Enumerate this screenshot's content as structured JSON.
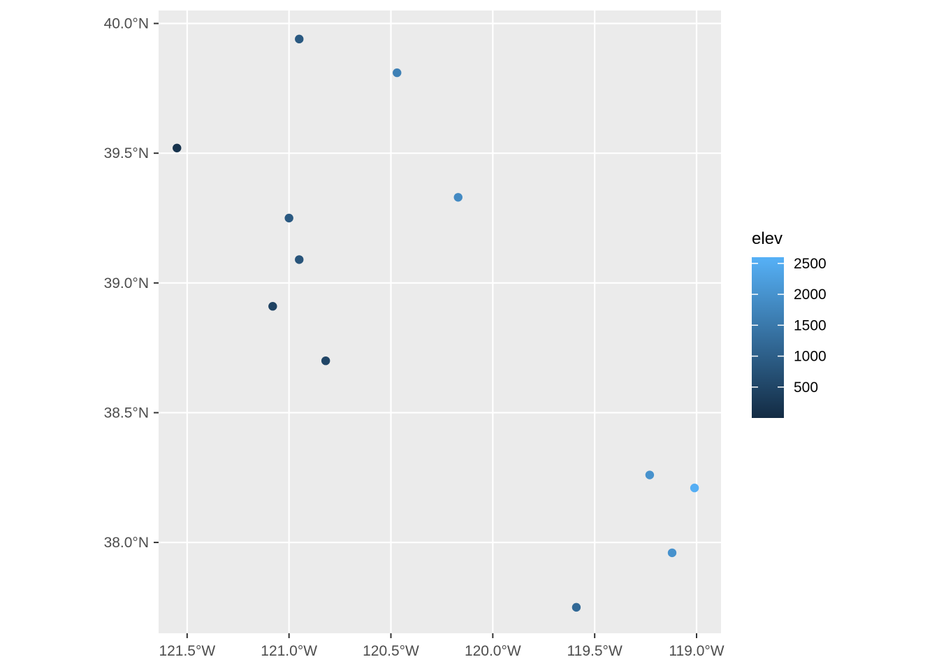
{
  "chart_data": {
    "type": "scatter",
    "title": "",
    "xlabel": "",
    "ylabel": "",
    "xlim": [
      -121.64,
      -118.88
    ],
    "ylim": [
      37.65,
      40.05
    ],
    "grid": true,
    "colors": {
      "panel": "#ebebeb",
      "grid": "#ffffff",
      "low": "#132b43",
      "high": "#56b1f7",
      "tick": "#333333"
    },
    "x_ticks": [
      {
        "value": -121.5,
        "label": "121.5°W"
      },
      {
        "value": -121.0,
        "label": "121.0°W"
      },
      {
        "value": -120.5,
        "label": "120.5°W"
      },
      {
        "value": -120.0,
        "label": "120.0°W"
      },
      {
        "value": -119.5,
        "label": "119.5°W"
      },
      {
        "value": -119.0,
        "label": "119.0°W"
      }
    ],
    "y_ticks": [
      {
        "value": 38.0,
        "label": "38.0°N"
      },
      {
        "value": 38.5,
        "label": "38.5°N"
      },
      {
        "value": 39.0,
        "label": "39.0°N"
      },
      {
        "value": 39.5,
        "label": "39.5°N"
      },
      {
        "value": 40.0,
        "label": "40.0°N"
      }
    ],
    "legend": {
      "title": "elev",
      "placement": "right",
      "range": [
        0,
        2600
      ],
      "breaks": [
        {
          "value": 500,
          "label": "500"
        },
        {
          "value": 1000,
          "label": "1000"
        },
        {
          "value": 1500,
          "label": "1500"
        },
        {
          "value": 2000,
          "label": "2000"
        },
        {
          "value": 2500,
          "label": "2500"
        }
      ]
    },
    "points": [
      {
        "x": -120.95,
        "y": 39.94,
        "elev": 900
      },
      {
        "x": -120.47,
        "y": 39.81,
        "elev": 1650
      },
      {
        "x": -121.55,
        "y": 39.52,
        "elev": 150
      },
      {
        "x": -120.17,
        "y": 39.33,
        "elev": 1850
      },
      {
        "x": -121.0,
        "y": 39.25,
        "elev": 900
      },
      {
        "x": -120.95,
        "y": 39.09,
        "elev": 800
      },
      {
        "x": -121.08,
        "y": 38.91,
        "elev": 450
      },
      {
        "x": -120.82,
        "y": 38.7,
        "elev": 500
      },
      {
        "x": -119.23,
        "y": 38.26,
        "elev": 2000
      },
      {
        "x": -119.01,
        "y": 38.21,
        "elev": 2550
      },
      {
        "x": -119.12,
        "y": 37.96,
        "elev": 2000
      },
      {
        "x": -119.59,
        "y": 37.75,
        "elev": 1200
      }
    ]
  }
}
